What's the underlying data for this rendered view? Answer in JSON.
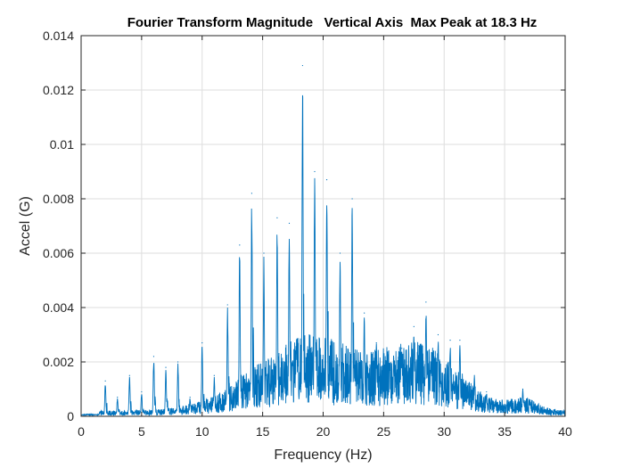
{
  "chart_data": {
    "type": "line",
    "title": "Fourier Transform Magnitude   Vertical Axis  Max Peak at 18.3 Hz",
    "xlabel": "Frequency (Hz)",
    "ylabel": "Accel (G)",
    "xlim": [
      0,
      40
    ],
    "ylim": [
      0,
      0.014
    ],
    "x_ticks": [
      "0",
      "5",
      "10",
      "15",
      "20",
      "25",
      "30",
      "35",
      "40"
    ],
    "y_ticks": [
      "0",
      "0.002",
      "0.004",
      "0.006",
      "0.008",
      "0.01",
      "0.012",
      "0.014"
    ],
    "grid": true,
    "line_color": "#0072BD",
    "peaks": [
      {
        "x": 2.0,
        "y": 0.0013
      },
      {
        "x": 3.0,
        "y": 0.0007
      },
      {
        "x": 4.0,
        "y": 0.0015
      },
      {
        "x": 5.0,
        "y": 0.0009
      },
      {
        "x": 6.0,
        "y": 0.0022
      },
      {
        "x": 7.0,
        "y": 0.0018
      },
      {
        "x": 8.0,
        "y": 0.002
      },
      {
        "x": 9.0,
        "y": 0.0007
      },
      {
        "x": 10.0,
        "y": 0.0027
      },
      {
        "x": 11.0,
        "y": 0.0015
      },
      {
        "x": 12.1,
        "y": 0.0041
      },
      {
        "x": 13.1,
        "y": 0.0063
      },
      {
        "x": 14.1,
        "y": 0.0082
      },
      {
        "x": 15.1,
        "y": 0.006
      },
      {
        "x": 16.2,
        "y": 0.0073
      },
      {
        "x": 17.2,
        "y": 0.0071
      },
      {
        "x": 18.3,
        "y": 0.0129
      },
      {
        "x": 19.3,
        "y": 0.009
      },
      {
        "x": 20.3,
        "y": 0.0087
      },
      {
        "x": 21.4,
        "y": 0.006
      },
      {
        "x": 22.4,
        "y": 0.008
      },
      {
        "x": 23.4,
        "y": 0.0038
      },
      {
        "x": 24.4,
        "y": 0.0027
      },
      {
        "x": 25.5,
        "y": 0.0018
      },
      {
        "x": 26.5,
        "y": 0.0025
      },
      {
        "x": 27.5,
        "y": 0.0033
      },
      {
        "x": 28.5,
        "y": 0.0042
      },
      {
        "x": 29.5,
        "y": 0.003
      },
      {
        "x": 30.5,
        "y": 0.0028
      },
      {
        "x": 31.3,
        "y": 0.0028
      },
      {
        "x": 32.5,
        "y": 0.0015
      },
      {
        "x": 33.5,
        "y": 0.0009
      },
      {
        "x": 36.5,
        "y": 0.001
      }
    ]
  }
}
